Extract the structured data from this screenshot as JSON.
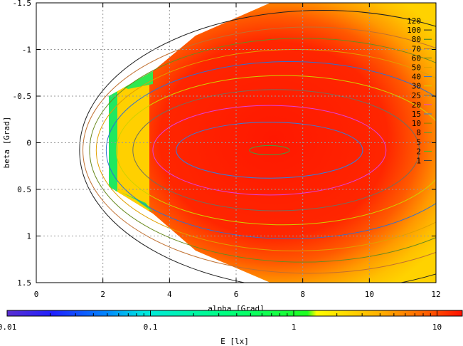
{
  "chart_data": {
    "type": "heatmap",
    "xlabel": "alpha [Grad]",
    "ylabel": "beta [Grad]",
    "colorbar_label": "E [lx]",
    "xlim": [
      0,
      12
    ],
    "ylim": [
      -1.5,
      1.5
    ],
    "y_axis_inverted": true,
    "x_ticks": [
      "0",
      "2",
      "4",
      "6",
      "8",
      "10",
      "12"
    ],
    "x_tick_values": [
      0,
      2,
      4,
      6,
      8,
      10,
      12
    ],
    "y_ticks": [
      "-1.5",
      "-1",
      "-0.5",
      "0",
      "0.5",
      "1",
      "1.5"
    ],
    "y_tick_values": [
      -1.5,
      -1,
      -0.5,
      0,
      0.5,
      1,
      1.5
    ],
    "colorbar_scale": "log",
    "colorbar_range": [
      0.01,
      15
    ],
    "colorbar_ticks": [
      "0.01",
      "0.1",
      "1",
      "10"
    ],
    "colorbar_tick_values": [
      0.01,
      0.1,
      1,
      10
    ],
    "grid": true,
    "contour_levels": [
      "120",
      "100",
      "80",
      "70",
      "60",
      "50",
      "40",
      "30",
      "25",
      "20",
      "15",
      "10",
      "8",
      "5",
      "2",
      "1"
    ],
    "contour_level_values": [
      120,
      100,
      80,
      70,
      60,
      50,
      40,
      30,
      25,
      20,
      15,
      10,
      8,
      5,
      2,
      1
    ],
    "contour_colors": [
      "#f0c040",
      "#202020",
      "#2a7a2a",
      "#c07030",
      "#6a8a20",
      "#e0a000",
      "#3070d0",
      "#d0d000",
      "#707060",
      "#e040e0",
      "#3080e0",
      "#808000",
      "#40a040",
      "#d06020",
      "#30c030",
      "#404040"
    ],
    "contour_ellipses": [
      {
        "level": 8,
        "cx": 7.0,
        "cy": 0.08,
        "ax": 0.6,
        "ay": 0.05
      },
      {
        "level": 15,
        "cx": 7.0,
        "cy": 0.08,
        "ax": 2.8,
        "ay": 0.3
      },
      {
        "level": 20,
        "cx": 7.0,
        "cy": 0.08,
        "ax": 3.5,
        "ay": 0.48
      },
      {
        "level": 25,
        "cx": 7.2,
        "cy": 0.08,
        "ax": 4.3,
        "ay": 0.65
      },
      {
        "level": 30,
        "cx": 7.4,
        "cy": 0.08,
        "ax": 5.0,
        "ay": 0.8
      },
      {
        "level": 40,
        "cx": 7.6,
        "cy": 0.08,
        "ax": 5.5,
        "ay": 0.95
      },
      {
        "level": 50,
        "cx": 7.8,
        "cy": 0.08,
        "ax": 6.0,
        "ay": 1.08
      },
      {
        "level": 60,
        "cx": 8.0,
        "cy": 0.08,
        "ax": 6.4,
        "ay": 1.2
      },
      {
        "level": 70,
        "cx": 8.2,
        "cy": 0.08,
        "ax": 6.8,
        "ay": 1.32
      },
      {
        "level": 100,
        "cx": 8.6,
        "cy": 0.08,
        "ax": 7.3,
        "ay": 1.5
      }
    ]
  }
}
